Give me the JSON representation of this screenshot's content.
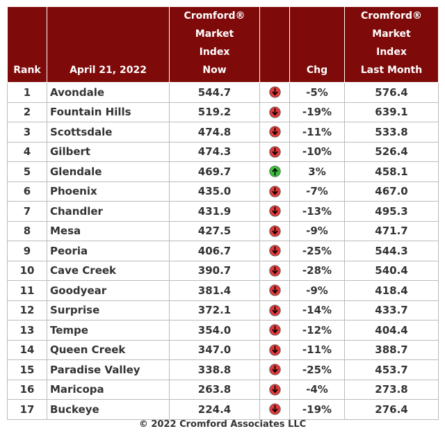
{
  "table": {
    "header": [
      [
        "Rank"
      ],
      [
        "April 21, 2022"
      ],
      [
        "Cromford®",
        "Market",
        "Index",
        "Now"
      ],
      [],
      [
        "Chg"
      ],
      [
        "Cromford®",
        "Market",
        "Index",
        "Last Month"
      ]
    ],
    "rows": [
      [
        "1",
        "Avondale",
        "544.7",
        "-5%",
        "576.4"
      ],
      [
        "2",
        "Fountain Hills",
        "519.2",
        "-19%",
        "639.1"
      ],
      [
        "3",
        "Scottsdale",
        "474.8",
        "-11%",
        "533.8"
      ],
      [
        "4",
        "Gilbert",
        "474.3",
        "-10%",
        "526.4"
      ],
      [
        "5",
        "Glendale",
        "469.7",
        "3%",
        "458.1"
      ],
      [
        "6",
        "Phoenix",
        "435.0",
        "-7%",
        "467.0"
      ],
      [
        "7",
        "Chandler",
        "431.9",
        "-13%",
        "495.3"
      ],
      [
        "8",
        "Mesa",
        "427.5",
        "-9%",
        "471.7"
      ],
      [
        "9",
        "Peoria",
        "406.7",
        "-25%",
        "544.3"
      ],
      [
        "10",
        "Cave Creek",
        "390.7",
        "-28%",
        "540.4"
      ],
      [
        "11",
        "Goodyear",
        "381.4",
        "-9%",
        "418.4"
      ],
      [
        "12",
        "Surprise",
        "372.1",
        "-14%",
        "433.7"
      ],
      [
        "13",
        "Tempe",
        "354.0",
        "-12%",
        "404.4"
      ],
      [
        "14",
        "Queen Creek",
        "347.0",
        "-11%",
        "388.7"
      ],
      [
        "15",
        "Paradise Valley",
        "338.8",
        "-25%",
        "453.7"
      ],
      [
        "16",
        "Maricopa",
        "263.8",
        "-4%",
        "273.8"
      ],
      [
        "17",
        "Buckeye",
        "224.4",
        "-19%",
        "276.4"
      ]
    ]
  },
  "footer": "© 2022 Cromford Associates LLC"
}
